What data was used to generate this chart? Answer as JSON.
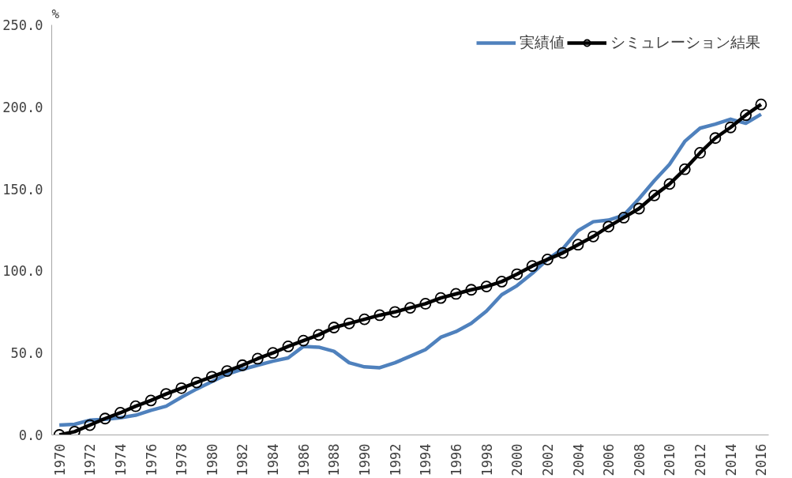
{
  "chart_data": {
    "type": "line",
    "ylabel": "%",
    "categories": [
      "1970",
      null,
      "1972",
      null,
      "1974",
      null,
      "1976",
      null,
      "1978",
      null,
      "1980",
      null,
      "1982",
      null,
      "1984",
      null,
      "1986",
      null,
      "1988",
      null,
      "1990",
      null,
      "1992",
      null,
      "1994",
      null,
      "1996",
      null,
      "1998",
      null,
      "2000",
      null,
      "2002",
      null,
      "2004",
      null,
      "2006",
      null,
      "2008",
      null,
      "2010",
      null,
      "2012",
      null,
      "2014",
      null,
      "2016"
    ],
    "series": [
      {
        "name": "実績値",
        "color": "#4f81bd",
        "marker": "none",
        "values": [
          6,
          6.5,
          9,
          9.5,
          10.5,
          12,
          15,
          17.5,
          23,
          28,
          32.5,
          37,
          40,
          42.5,
          45,
          47,
          54,
          53.5,
          51,
          44,
          41.5,
          41,
          44,
          48,
          52,
          59.5,
          63,
          68,
          75.5,
          85.5,
          91,
          98.5,
          107,
          113.5,
          124.5,
          130,
          131,
          134,
          144,
          155,
          165,
          179,
          187,
          189.5,
          192.5,
          190,
          195.5
        ]
      },
      {
        "name": "シミュレーション結果",
        "color": "#000000",
        "marker": "circle",
        "values": [
          0,
          2,
          6,
          10,
          13.5,
          17.5,
          21,
          25,
          28.5,
          32,
          35.5,
          39,
          42.5,
          46.5,
          50,
          54,
          57.5,
          61,
          65.5,
          68,
          70.5,
          73,
          75,
          77.5,
          80,
          83.5,
          86,
          88.5,
          90.5,
          93.5,
          98,
          103,
          107,
          111,
          116,
          121,
          127,
          132.5,
          138,
          146,
          153,
          162,
          172,
          181,
          187.5,
          195,
          201.5
        ]
      }
    ],
    "ylim": [
      0,
      250
    ],
    "yticks": [
      {
        "value": 0,
        "label": "0.0"
      },
      {
        "value": 50,
        "label": "50.0"
      },
      {
        "value": 100,
        "label": "100.0"
      },
      {
        "value": 150,
        "label": "150.0"
      },
      {
        "value": 200,
        "label": "200.0"
      },
      {
        "value": 250,
        "label": "250.0"
      }
    ],
    "grid": false,
    "legend": "top right",
    "line_style": "solid"
  }
}
